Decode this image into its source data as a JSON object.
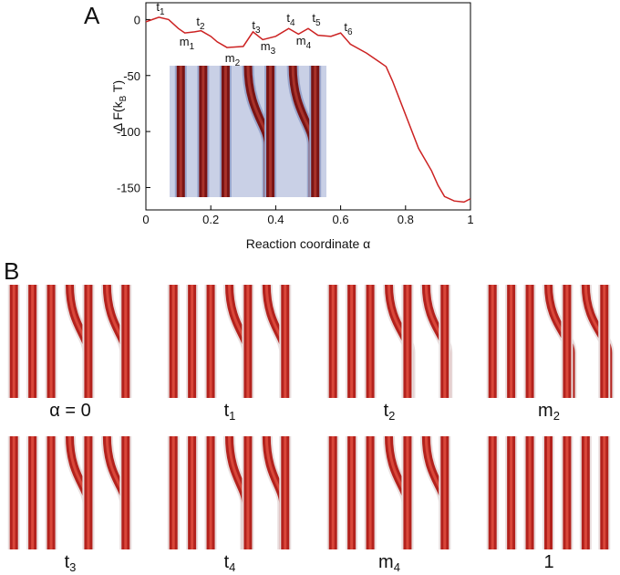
{
  "chart_data": {
    "type": "line",
    "panel_a_label": "A",
    "panel_b_label": "B",
    "xlabel": "Reaction coordinate α",
    "ylabel": {
      "text": "Δ F(k",
      "sub": "B",
      "tail": " T)"
    },
    "x": [
      0,
      0.04,
      0.07,
      0.1,
      0.12,
      0.15,
      0.17,
      0.2,
      0.22,
      0.25,
      0.3,
      0.33,
      0.36,
      0.4,
      0.44,
      0.47,
      0.5,
      0.53,
      0.57,
      0.6,
      0.63,
      0.68,
      0.72,
      0.74,
      0.76,
      0.8,
      0.84,
      0.88,
      0.9,
      0.92,
      0.95,
      0.98,
      1
    ],
    "values": [
      -2,
      2,
      0,
      -8,
      -12,
      -11,
      -10,
      -15,
      -20,
      -25,
      -24,
      -11,
      -18,
      -15,
      -8,
      -13,
      -8,
      -14,
      -15,
      -12,
      -22,
      -30,
      -38,
      -42,
      -55,
      -85,
      -115,
      -135,
      -148,
      -158,
      -162,
      -163,
      -160
    ],
    "color": "#cc2222",
    "xlim": [
      0,
      1
    ],
    "xticks": [
      0,
      0.2,
      0.4,
      0.6,
      0.8,
      1
    ],
    "ylim": [
      -170,
      15
    ],
    "yticks": [
      0,
      -50,
      -100,
      -150
    ],
    "annotations": [
      {
        "base": "t",
        "sub": "1"
      },
      {
        "base": "m",
        "sub": "1"
      },
      {
        "base": "t",
        "sub": "2"
      },
      {
        "base": "m",
        "sub": "2"
      },
      {
        "base": "t",
        "sub": "3"
      },
      {
        "base": "m",
        "sub": "3"
      },
      {
        "base": "t",
        "sub": "4"
      },
      {
        "base": "m",
        "sub": "4"
      },
      {
        "base": "t",
        "sub": "5"
      },
      {
        "base": "t",
        "sub": "6"
      }
    ],
    "captions": [
      {
        "base": "α = 0"
      },
      {
        "base": "t",
        "sub": "1"
      },
      {
        "base": "t",
        "sub": "2"
      },
      {
        "base": "m",
        "sub": "2"
      },
      {
        "base": "t",
        "sub": "3"
      },
      {
        "base": "t",
        "sub": "4"
      },
      {
        "base": "m",
        "sub": "4"
      },
      {
        "base": "1"
      }
    ]
  }
}
